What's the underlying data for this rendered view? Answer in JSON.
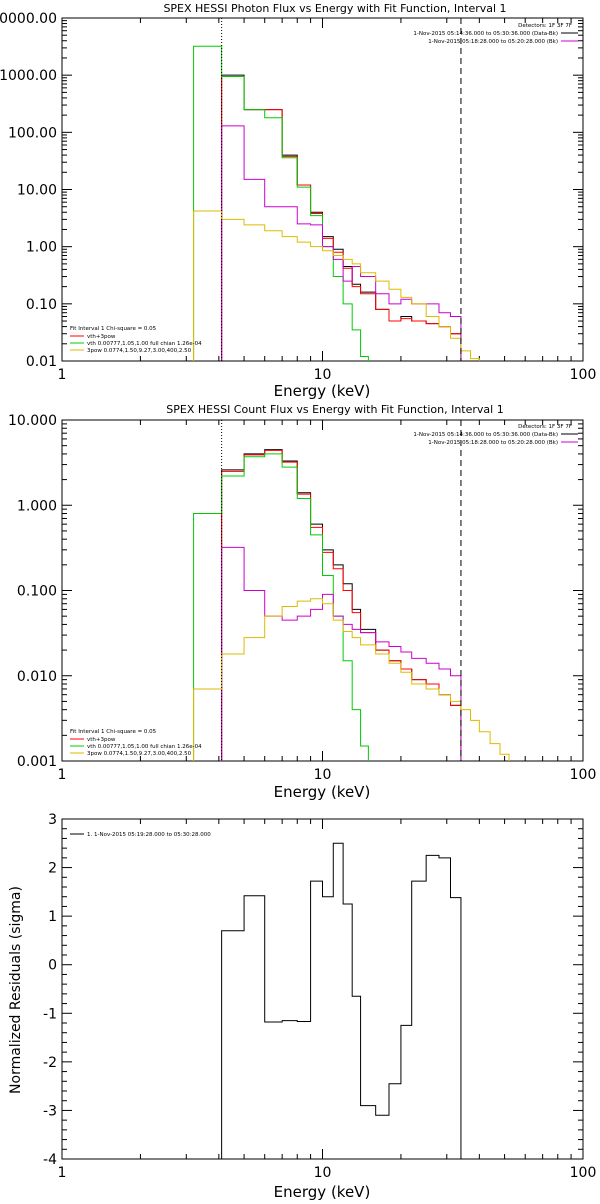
{
  "chart_data": [
    {
      "type": "line",
      "title": "SPEX HESSI Photon Flux vs Energy with Fit Function, Interval 1",
      "xlabel": "Energy (keV)",
      "ylabel": "",
      "xscale": "log",
      "yscale": "log",
      "xlim": [
        1,
        100
      ],
      "ylim": [
        0.01,
        10000
      ],
      "xticks": [
        1,
        10,
        100
      ],
      "xtick_labels": [
        "1",
        "10",
        "100"
      ],
      "yticks": [
        0.01,
        0.1,
        1,
        10,
        100,
        1000,
        10000
      ],
      "ytick_labels": [
        "0.01",
        "0.10",
        "1.00",
        "10.00",
        "100.00",
        "1000.00",
        "10000.00"
      ],
      "vlines": [
        {
          "x": 4.1,
          "style": "dotted"
        },
        {
          "x": 34,
          "style": "dashed"
        }
      ],
      "info_lines": [
        "Detectors: 1F 3F 7F",
        "1-Nov-2015 05:14:36.000 to 05:30:36.000 (Data-Bk)",
        "1-Nov-2015 05:18:28.000 to 05:20:28.000 (Bk)"
      ],
      "info_colors": [
        "",
        "#000000",
        "#cc00cc"
      ],
      "legend_title": "Fit Interval 1   Chi-square = 0.05",
      "legend": [
        {
          "label": "vth+3pow",
          "color": "#ff0000"
        },
        {
          "label": "vth 0.00777,1.05,1.00  full chian 1.26e-04",
          "color": "#00cc00"
        },
        {
          "label": "3pow 0.0774,1.50,9.27,3.00,400,2.50",
          "color": "#ddbb00"
        }
      ],
      "series": [
        {
          "color": "#000000",
          "edges": [
            4.1,
            5,
            6,
            7,
            8,
            9,
            10,
            11,
            12,
            13,
            14,
            16,
            18,
            20,
            22,
            25,
            28,
            31,
            34
          ],
          "values": [
            1000,
            250,
            250,
            40,
            12,
            4,
            1.5,
            0.9,
            0.45,
            0.22,
            0.16,
            0.08,
            0.05,
            0.06,
            0.05,
            0.045,
            0.04,
            0.03
          ]
        },
        {
          "color": "#ff0000",
          "edges": [
            4.1,
            5,
            6,
            7,
            8,
            9,
            10,
            11,
            12,
            13,
            14,
            16,
            18,
            20,
            22,
            25,
            28,
            31,
            34
          ],
          "values": [
            950,
            250,
            250,
            38,
            12,
            3.8,
            1.4,
            0.8,
            0.42,
            0.2,
            0.15,
            0.08,
            0.05,
            0.055,
            0.05,
            0.045,
            0.04,
            0.03
          ]
        },
        {
          "color": "#00cc00",
          "edges": [
            3.2,
            4.1,
            5,
            6,
            7,
            8,
            9,
            10,
            11,
            12,
            13,
            14,
            15
          ],
          "values": [
            3200,
            950,
            250,
            180,
            36,
            11,
            3.5,
            1.0,
            0.3,
            0.1,
            0.035,
            0.012
          ]
        },
        {
          "color": "#cc00cc",
          "edges": [
            4.1,
            5,
            6,
            7,
            8,
            9,
            10,
            11,
            12,
            13,
            14,
            16,
            18,
            20,
            22,
            25,
            28,
            31,
            34
          ],
          "values": [
            130,
            15,
            5,
            5,
            2.5,
            2.4,
            1.0,
            0.6,
            0.25,
            0.45,
            0.3,
            0.15,
            0.1,
            0.12,
            0.1,
            0.1,
            0.07,
            0.06
          ]
        },
        {
          "color": "#ddbb00",
          "edges": [
            3.2,
            4.1,
            5,
            6,
            7,
            8,
            9,
            10,
            11,
            12,
            13,
            14,
            16,
            18,
            20,
            22,
            25,
            28,
            31,
            34,
            37,
            40
          ],
          "values": [
            4.2,
            3.0,
            2.4,
            1.9,
            1.5,
            1.2,
            1.0,
            0.85,
            0.7,
            0.6,
            0.5,
            0.35,
            0.25,
            0.18,
            0.13,
            0.1,
            0.06,
            0.04,
            0.025,
            0.015,
            0.011
          ]
        }
      ]
    },
    {
      "type": "line",
      "title": "SPEX HESSI Count Flux vs Energy with Fit Function, Interval 1",
      "xlabel": "Energy (keV)",
      "ylabel": "",
      "xscale": "log",
      "yscale": "log",
      "xlim": [
        1,
        100
      ],
      "ylim": [
        0.001,
        10
      ],
      "xticks": [
        1,
        10,
        100
      ],
      "xtick_labels": [
        "1",
        "10",
        "100"
      ],
      "yticks": [
        0.001,
        0.01,
        0.1,
        1,
        10
      ],
      "ytick_labels": [
        "0.001",
        "0.010",
        "0.100",
        "1.000",
        "10.000"
      ],
      "vlines": [
        {
          "x": 4.1,
          "style": "dotted"
        },
        {
          "x": 34,
          "style": "dashed"
        }
      ],
      "info_lines": [
        "Detectors: 1F 3F 7F",
        "1-Nov-2015 05:14:36.000 to 05:30:36.000 (Data-Bk)",
        "1-Nov-2015 05:18:28.000 to 05:20:28.000 (Bk)"
      ],
      "info_colors": [
        "",
        "#000000",
        "#cc00cc"
      ],
      "legend_title": "Fit Interval 1   Chi-square = 0.05",
      "legend": [
        {
          "label": "vth+3pow",
          "color": "#ff0000"
        },
        {
          "label": "vth 0.00777,1.05,1.00  full chian 1.26e-04",
          "color": "#00cc00"
        },
        {
          "label": "3pow 0.0774,1.50,9.27,3.00,400,2.50",
          "color": "#ddbb00"
        }
      ],
      "series": [
        {
          "color": "#000000",
          "edges": [
            4.1,
            5,
            6,
            7,
            8,
            9,
            10,
            11,
            12,
            13,
            14,
            16,
            18,
            20,
            22,
            25,
            28,
            31,
            34
          ],
          "values": [
            2.6,
            4.0,
            4.5,
            3.3,
            1.4,
            0.6,
            0.3,
            0.2,
            0.12,
            0.06,
            0.035,
            0.02,
            0.015,
            0.012,
            0.009,
            0.008,
            0.006,
            0.0045
          ]
        },
        {
          "color": "#ff0000",
          "edges": [
            4.1,
            5,
            6,
            7,
            8,
            9,
            10,
            11,
            12,
            13,
            14,
            16,
            18,
            20,
            22,
            25,
            28,
            31,
            34
          ],
          "values": [
            2.5,
            3.9,
            4.4,
            3.2,
            1.35,
            0.55,
            0.28,
            0.18,
            0.1,
            0.055,
            0.032,
            0.02,
            0.015,
            0.012,
            0.009,
            0.008,
            0.006,
            0.0045
          ]
        },
        {
          "color": "#00cc00",
          "edges": [
            3.2,
            4.1,
            5,
            6,
            7,
            8,
            9,
            10,
            11,
            12,
            13,
            14,
            15
          ],
          "values": [
            0.8,
            2.2,
            3.7,
            4.0,
            2.8,
            1.2,
            0.45,
            0.15,
            0.05,
            0.015,
            0.004,
            0.0015
          ]
        },
        {
          "color": "#cc00cc",
          "edges": [
            4.1,
            5,
            6,
            7,
            8,
            9,
            10,
            11,
            12,
            13,
            14,
            16,
            18,
            20,
            22,
            25,
            28,
            31,
            34
          ],
          "values": [
            0.32,
            0.1,
            0.05,
            0.045,
            0.05,
            0.06,
            0.09,
            0.05,
            0.04,
            0.035,
            0.032,
            0.025,
            0.022,
            0.019,
            0.016,
            0.014,
            0.012,
            0.01
          ]
        },
        {
          "color": "#ddbb00",
          "edges": [
            3.2,
            4.1,
            5,
            6,
            7,
            8,
            9,
            10,
            11,
            12,
            13,
            14,
            16,
            18,
            20,
            22,
            25,
            28,
            31,
            34,
            37,
            40,
            44,
            48,
            52
          ],
          "values": [
            0.007,
            0.018,
            0.028,
            0.05,
            0.065,
            0.075,
            0.08,
            0.07,
            0.045,
            0.033,
            0.028,
            0.023,
            0.018,
            0.014,
            0.011,
            0.008,
            0.007,
            0.006,
            0.005,
            0.004,
            0.003,
            0.0022,
            0.0016,
            0.0012
          ]
        }
      ]
    },
    {
      "type": "line",
      "title": "",
      "xlabel": "Energy (keV)",
      "ylabel": "Normalized Residuals (sigma)",
      "xscale": "log",
      "yscale": "linear",
      "xlim": [
        1,
        100
      ],
      "ylim": [
        -4,
        3
      ],
      "xticks": [
        1,
        10,
        100
      ],
      "xtick_labels": [
        "1",
        "10",
        "100"
      ],
      "yticks": [
        -4,
        -3,
        -2,
        -1,
        0,
        1,
        2,
        3
      ],
      "ytick_labels": [
        "-4",
        "-3",
        "-2",
        "-1",
        "0",
        "1",
        "2",
        "3"
      ],
      "legend": [
        {
          "label": "1.  1-Nov-2015 05:19:28.000 to 05:30:28.000",
          "color": "#000000"
        }
      ],
      "series": [
        {
          "color": "#000000",
          "edges": [
            4.1,
            5,
            6,
            7,
            8,
            9,
            10,
            11,
            12,
            13,
            14,
            16,
            18,
            20,
            22,
            25,
            28,
            31,
            34
          ],
          "values": [
            0.7,
            1.42,
            -1.18,
            -1.15,
            -1.17,
            1.72,
            1.4,
            2.5,
            1.25,
            -0.65,
            -2.9,
            -3.1,
            -2.45,
            -1.25,
            1.72,
            2.25,
            2.2,
            1.38
          ],
          "drop_to": -4
        }
      ]
    }
  ]
}
